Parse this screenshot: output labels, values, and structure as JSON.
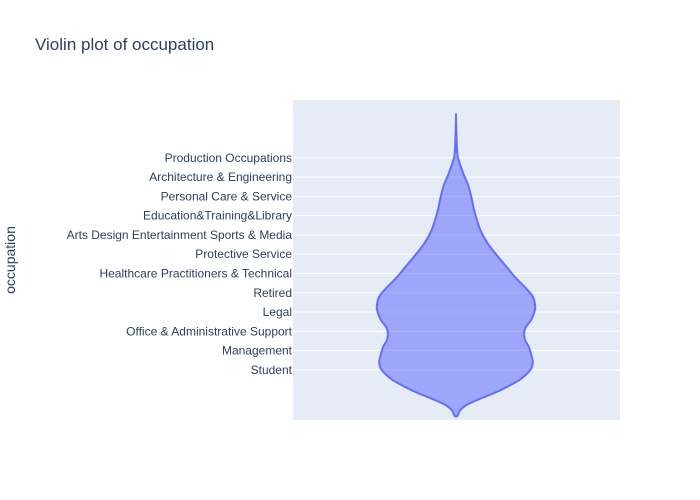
{
  "chart_data": {
    "type": "violin",
    "title": "Violin plot of occupation",
    "xlabel": "",
    "ylabel": "occupation",
    "categories": [
      "Student",
      "Management",
      "Office & Administrative Support",
      "Legal",
      "Retired",
      "Healthcare Practitioners & Technical",
      "Protective Service",
      "Arts Design Entertainment Sports & Media",
      "Education&Training&Library",
      "Personal Care & Service",
      "Architecture & Engineering",
      "Production Occupations"
    ],
    "density_profile": [
      {
        "y": -2.38,
        "w": 0.02
      },
      {
        "y": -2.1,
        "w": 0.05
      },
      {
        "y": -1.8,
        "w": 0.14
      },
      {
        "y": -1.5,
        "w": 0.3
      },
      {
        "y": -1.2,
        "w": 0.48
      },
      {
        "y": -0.9,
        "w": 0.63
      },
      {
        "y": -0.5,
        "w": 0.8
      },
      {
        "y": 0.0,
        "w": 0.93
      },
      {
        "y": 0.4,
        "w": 0.96
      },
      {
        "y": 0.8,
        "w": 0.94
      },
      {
        "y": 1.2,
        "w": 0.91
      },
      {
        "y": 1.6,
        "w": 0.86
      },
      {
        "y": 2.1,
        "w": 0.86
      },
      {
        "y": 2.6,
        "w": 0.94
      },
      {
        "y": 3.0,
        "w": 0.98
      },
      {
        "y": 3.3,
        "w": 0.99
      },
      {
        "y": 3.8,
        "w": 0.96
      },
      {
        "y": 4.3,
        "w": 0.86
      },
      {
        "y": 4.8,
        "w": 0.74
      },
      {
        "y": 5.4,
        "w": 0.62
      },
      {
        "y": 6.0,
        "w": 0.5
      },
      {
        "y": 6.6,
        "w": 0.39
      },
      {
        "y": 7.2,
        "w": 0.31
      },
      {
        "y": 7.8,
        "w": 0.26
      },
      {
        "y": 8.4,
        "w": 0.22
      },
      {
        "y": 9.0,
        "w": 0.19
      },
      {
        "y": 9.6,
        "w": 0.15
      },
      {
        "y": 10.2,
        "w": 0.09
      },
      {
        "y": 10.8,
        "w": 0.04
      },
      {
        "y": 11.3,
        "w": 0.015
      },
      {
        "y": 13.05,
        "w": 0.0
      }
    ],
    "ylim": [
      -2.6,
      14.0
    ],
    "grid": true,
    "legend": "none",
    "colors": {
      "fill": "rgba(99,110,250,0.55)",
      "line": "#636efa",
      "plot_bg": "#e5ecf6",
      "grid": "#ffffff",
      "text": "#2a3f5f"
    }
  }
}
